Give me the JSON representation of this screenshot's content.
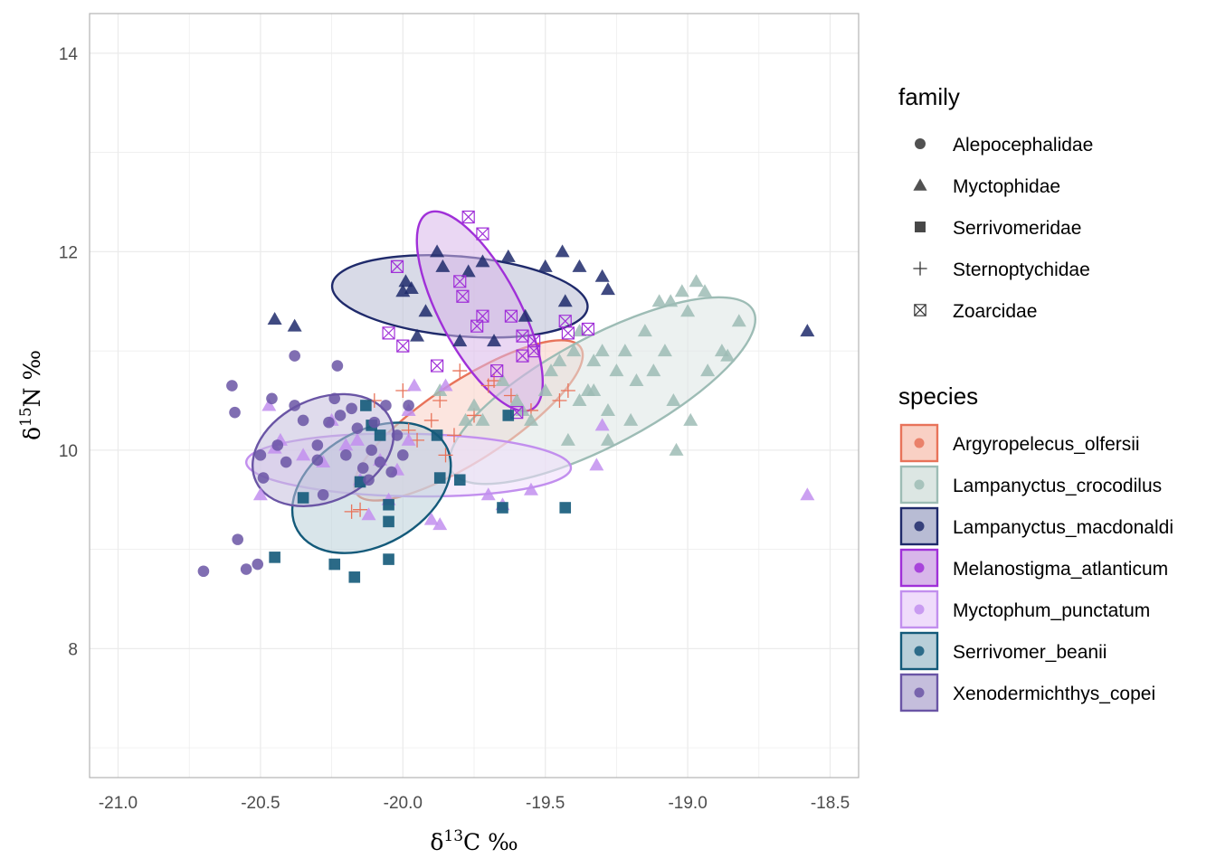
{
  "chart_data": {
    "type": "scatter",
    "xlabel_base": "δ",
    "xlabel_sup": "13",
    "xlabel_rest": "C ‰",
    "ylabel_base": "δ",
    "ylabel_sup": "15",
    "ylabel_rest": "N ‰",
    "xlim": [
      -21.1,
      -18.4
    ],
    "ylim": [
      6.7,
      14.4
    ],
    "x_ticks": [
      -21.0,
      -20.5,
      -20.0,
      -19.5,
      -19.0,
      -18.5
    ],
    "x_tick_labels": [
      "-21.0",
      "-20.5",
      "-20.0",
      "-19.5",
      "-19.0",
      "-18.5"
    ],
    "y_ticks": [
      8,
      10,
      12,
      14
    ],
    "y_tick_labels": [
      "8",
      "10",
      "12",
      "14"
    ],
    "grid": true,
    "legend_family_title": "family",
    "legend_species_title": "species",
    "families": [
      {
        "name": "Alepocephalidae",
        "shape": "circle"
      },
      {
        "name": "Myctophidae",
        "shape": "triangle"
      },
      {
        "name": "Serrivomeridae",
        "shape": "square"
      },
      {
        "name": "Sternoptychidae",
        "shape": "plus"
      },
      {
        "name": "Zoarcidae",
        "shape": "boxx"
      }
    ],
    "species": [
      {
        "name": "Argyropelecus_olfersii",
        "color": "#e8735a",
        "fill": "#f9d0c4",
        "shape": "plus",
        "ellipse": {
          "cx": -19.77,
          "cy": 10.3,
          "a": 0.47,
          "b": 0.14,
          "angle": 33
        },
        "points": [
          [
            -20.1,
            10.5
          ],
          [
            -20.0,
            10.6
          ],
          [
            -19.98,
            10.2
          ],
          [
            -19.9,
            10.3
          ],
          [
            -19.87,
            10.5
          ],
          [
            -19.85,
            9.95
          ],
          [
            -19.8,
            10.8
          ],
          [
            -19.75,
            10.35
          ],
          [
            -19.7,
            10.65
          ],
          [
            -19.68,
            10.7
          ],
          [
            -19.62,
            10.55
          ],
          [
            -19.55,
            10.4
          ],
          [
            -19.45,
            10.5
          ],
          [
            -19.42,
            10.6
          ],
          [
            -20.18,
            9.38
          ],
          [
            -20.15,
            9.4
          ],
          [
            -19.95,
            10.1
          ],
          [
            -19.82,
            10.15
          ]
        ]
      },
      {
        "name": "Lampanyctus_crocodilus",
        "color": "#9dbcb5",
        "fill": "#dce6e3",
        "shape": "triangle",
        "ellipse": {
          "cx": -19.3,
          "cy": 10.6,
          "a": 0.6,
          "b": 0.19,
          "angle": 28
        },
        "points": [
          [
            -19.87,
            10.6
          ],
          [
            -19.78,
            10.3
          ],
          [
            -19.75,
            10.45
          ],
          [
            -19.72,
            10.3
          ],
          [
            -19.65,
            10.7
          ],
          [
            -19.6,
            10.5
          ],
          [
            -19.58,
            10.4
          ],
          [
            -19.55,
            10.3
          ],
          [
            -19.5,
            10.6
          ],
          [
            -19.48,
            10.8
          ],
          [
            -19.45,
            10.9
          ],
          [
            -19.42,
            10.1
          ],
          [
            -19.4,
            11.0
          ],
          [
            -19.38,
            10.5
          ],
          [
            -19.35,
            10.6
          ],
          [
            -19.33,
            10.9
          ],
          [
            -19.3,
            11.0
          ],
          [
            -19.28,
            10.4
          ],
          [
            -19.25,
            10.8
          ],
          [
            -19.22,
            11.0
          ],
          [
            -19.2,
            10.3
          ],
          [
            -19.18,
            10.7
          ],
          [
            -19.1,
            11.5
          ],
          [
            -19.08,
            11.0
          ],
          [
            -19.06,
            11.5
          ],
          [
            -19.05,
            10.5
          ],
          [
            -19.04,
            10.0
          ],
          [
            -19.02,
            11.6
          ],
          [
            -19.0,
            11.4
          ],
          [
            -18.99,
            10.3
          ],
          [
            -18.97,
            11.7
          ],
          [
            -18.94,
            11.6
          ],
          [
            -18.93,
            10.8
          ],
          [
            -18.88,
            11.0
          ],
          [
            -18.86,
            10.95
          ],
          [
            -18.82,
            11.3
          ],
          [
            -19.12,
            10.8
          ],
          [
            -19.28,
            10.1
          ],
          [
            -19.15,
            11.2
          ],
          [
            -19.33,
            10.6
          ],
          [
            -19.38,
            11.2
          ]
        ]
      },
      {
        "name": "Lampanyctus_macdonaldi",
        "color": "#1f2a6b",
        "fill": "#b8bcd4",
        "shape": "triangle",
        "ellipse": {
          "cx": -19.8,
          "cy": 11.55,
          "a": 0.45,
          "b": 0.14,
          "angle": -5
        },
        "points": [
          [
            -20.45,
            11.32
          ],
          [
            -20.38,
            11.25
          ],
          [
            -20.0,
            11.6
          ],
          [
            -19.99,
            11.7
          ],
          [
            -19.97,
            11.63
          ],
          [
            -19.95,
            11.15
          ],
          [
            -19.88,
            12.0
          ],
          [
            -19.86,
            11.85
          ],
          [
            -19.8,
            11.1
          ],
          [
            -19.77,
            11.8
          ],
          [
            -19.72,
            11.9
          ],
          [
            -19.68,
            11.1
          ],
          [
            -19.63,
            11.95
          ],
          [
            -19.57,
            11.35
          ],
          [
            -19.5,
            11.85
          ],
          [
            -19.44,
            12.0
          ],
          [
            -19.43,
            11.5
          ],
          [
            -19.38,
            11.85
          ],
          [
            -19.3,
            11.75
          ],
          [
            -19.28,
            11.62
          ],
          [
            -18.58,
            11.2
          ],
          [
            -19.92,
            11.4
          ]
        ]
      },
      {
        "name": "Melanostigma_atlanticum",
        "color": "#a030d8",
        "fill": "#d8b6ea",
        "shape": "boxx",
        "ellipse": {
          "cx": -19.73,
          "cy": 11.4,
          "a": 0.39,
          "b": 0.14,
          "angle": -62
        },
        "points": [
          [
            -20.02,
            11.85
          ],
          [
            -20.05,
            11.18
          ],
          [
            -20.0,
            11.05
          ],
          [
            -19.88,
            10.85
          ],
          [
            -19.8,
            11.7
          ],
          [
            -19.79,
            11.55
          ],
          [
            -19.77,
            12.35
          ],
          [
            -19.74,
            11.25
          ],
          [
            -19.72,
            12.18
          ],
          [
            -19.72,
            11.35
          ],
          [
            -19.67,
            10.8
          ],
          [
            -19.62,
            11.35
          ],
          [
            -19.58,
            10.95
          ],
          [
            -19.58,
            11.15
          ],
          [
            -19.54,
            11.1
          ],
          [
            -19.54,
            11.0
          ],
          [
            -19.43,
            11.3
          ],
          [
            -19.42,
            11.18
          ],
          [
            -19.35,
            11.22
          ],
          [
            -19.6,
            10.38
          ]
        ]
      },
      {
        "name": "Myctophum_punctatum",
        "color": "#c28fee",
        "fill": "#efdcfb",
        "shape": "triangle",
        "ellipse": {
          "cx": -19.98,
          "cy": 9.85,
          "a": 0.57,
          "b": 0.11,
          "angle": -1
        },
        "points": [
          [
            -20.5,
            9.55
          ],
          [
            -20.47,
            10.45
          ],
          [
            -20.45,
            10.02
          ],
          [
            -20.43,
            10.1
          ],
          [
            -20.35,
            9.95
          ],
          [
            -20.28,
            9.88
          ],
          [
            -20.25,
            10.3
          ],
          [
            -20.2,
            10.05
          ],
          [
            -20.16,
            10.1
          ],
          [
            -20.12,
            9.35
          ],
          [
            -20.08,
            9.9
          ],
          [
            -20.05,
            9.5
          ],
          [
            -20.02,
            9.8
          ],
          [
            -19.98,
            10.1
          ],
          [
            -19.96,
            10.65
          ],
          [
            -19.9,
            9.3
          ],
          [
            -19.87,
            9.25
          ],
          [
            -19.85,
            10.65
          ],
          [
            -19.7,
            9.55
          ],
          [
            -19.65,
            9.45
          ],
          [
            -19.55,
            9.6
          ],
          [
            -19.3,
            10.25
          ],
          [
            -19.32,
            9.85
          ],
          [
            -18.58,
            9.55
          ],
          [
            -20.15,
            9.7
          ],
          [
            -19.98,
            10.4
          ]
        ]
      },
      {
        "name": "Serrivomer_beanii",
        "color": "#145a7a",
        "fill": "#b9cfd9",
        "shape": "square",
        "ellipse": {
          "cx": -20.11,
          "cy": 9.62,
          "a": 0.3,
          "b": 0.2,
          "angle": 30
        },
        "points": [
          [
            -20.45,
            8.92
          ],
          [
            -20.35,
            9.52
          ],
          [
            -20.24,
            8.85
          ],
          [
            -20.17,
            8.72
          ],
          [
            -20.15,
            9.68
          ],
          [
            -20.13,
            10.45
          ],
          [
            -20.11,
            10.25
          ],
          [
            -20.08,
            10.15
          ],
          [
            -20.05,
            9.45
          ],
          [
            -20.05,
            9.28
          ],
          [
            -20.05,
            8.9
          ],
          [
            -19.88,
            10.15
          ],
          [
            -19.87,
            9.72
          ],
          [
            -19.8,
            9.7
          ],
          [
            -19.65,
            9.42
          ],
          [
            -19.63,
            10.35
          ],
          [
            -19.43,
            9.42
          ]
        ]
      },
      {
        "name": "Xenodermichthys_copei",
        "color": "#6a55a5",
        "fill": "#c5bedc",
        "shape": "circle",
        "ellipse": {
          "cx": -20.28,
          "cy": 10.0,
          "a": 0.26,
          "b": 0.18,
          "angle": 25
        },
        "points": [
          [
            -20.7,
            8.78
          ],
          [
            -20.6,
            10.65
          ],
          [
            -20.59,
            10.38
          ],
          [
            -20.58,
            9.1
          ],
          [
            -20.55,
            8.8
          ],
          [
            -20.51,
            8.85
          ],
          [
            -20.5,
            9.95
          ],
          [
            -20.49,
            9.72
          ],
          [
            -20.46,
            10.52
          ],
          [
            -20.44,
            10.05
          ],
          [
            -20.41,
            9.88
          ],
          [
            -20.38,
            10.95
          ],
          [
            -20.38,
            10.45
          ],
          [
            -20.35,
            10.3
          ],
          [
            -20.3,
            9.9
          ],
          [
            -20.28,
            9.55
          ],
          [
            -20.26,
            10.28
          ],
          [
            -20.24,
            10.52
          ],
          [
            -20.23,
            10.85
          ],
          [
            -20.22,
            10.35
          ],
          [
            -20.18,
            10.42
          ],
          [
            -20.16,
            10.22
          ],
          [
            -20.14,
            9.82
          ],
          [
            -20.12,
            9.7
          ],
          [
            -20.11,
            10.0
          ],
          [
            -20.1,
            10.28
          ],
          [
            -20.08,
            9.88
          ],
          [
            -20.06,
            10.45
          ],
          [
            -20.04,
            9.78
          ],
          [
            -20.02,
            10.15
          ],
          [
            -20.0,
            9.95
          ],
          [
            -19.98,
            10.45
          ],
          [
            -20.3,
            10.05
          ],
          [
            -20.2,
            9.95
          ]
        ]
      }
    ]
  }
}
